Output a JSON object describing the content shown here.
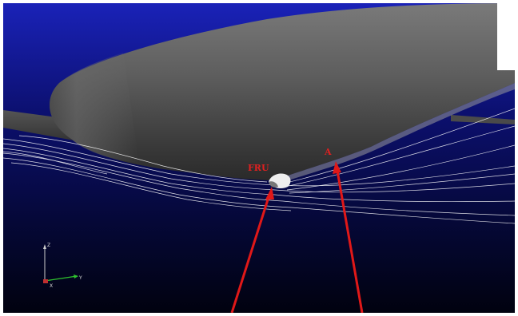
{
  "scene": {
    "background_top": "#1a20b0",
    "background_bottom": "#02031a",
    "body_color": "#5a5a5a",
    "streamline_color": "#ffffff",
    "callout_color": "#e02020"
  },
  "labels": {
    "fru": "FRU",
    "a": "A"
  },
  "axes": {
    "vertical": "Z",
    "horizontal": "Y",
    "origin": "X"
  }
}
